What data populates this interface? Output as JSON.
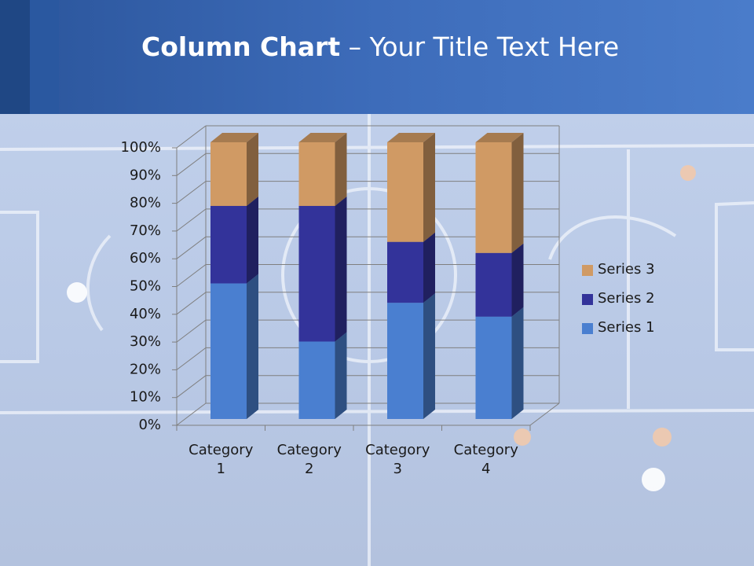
{
  "chart_data": {
    "type": "stacked_column_3d",
    "title": [
      "Column Chart",
      "– Your Title Text Here"
    ],
    "categories": [
      "Category 1",
      "Category 2",
      "Category 3",
      "Category 4"
    ],
    "series": [
      {
        "name": "Series 1",
        "color": "#4a7fd0",
        "values": [
          49,
          28,
          42,
          37
        ]
      },
      {
        "name": "Series 2",
        "color": "#33339a",
        "values": [
          28,
          49,
          22,
          23
        ]
      },
      {
        "name": "Series 3",
        "color": "#d09a64",
        "values": [
          23,
          23,
          36,
          40
        ]
      }
    ],
    "ylim": [
      0,
      100
    ],
    "yticks": [
      {
        "value": 0,
        "label": "0%"
      },
      {
        "value": 10,
        "label": "10%"
      },
      {
        "value": 20,
        "label": "20%"
      },
      {
        "value": 30,
        "label": "30%"
      },
      {
        "value": 40,
        "label": "40%"
      },
      {
        "value": 50,
        "label": "50%"
      },
      {
        "value": 60,
        "label": "60%"
      },
      {
        "value": 70,
        "label": "70%"
      },
      {
        "value": 80,
        "label": "80%"
      },
      {
        "value": 90,
        "label": "90%"
      },
      {
        "value": 100,
        "label": "100%"
      }
    ],
    "grid": true,
    "legend": "right"
  }
}
